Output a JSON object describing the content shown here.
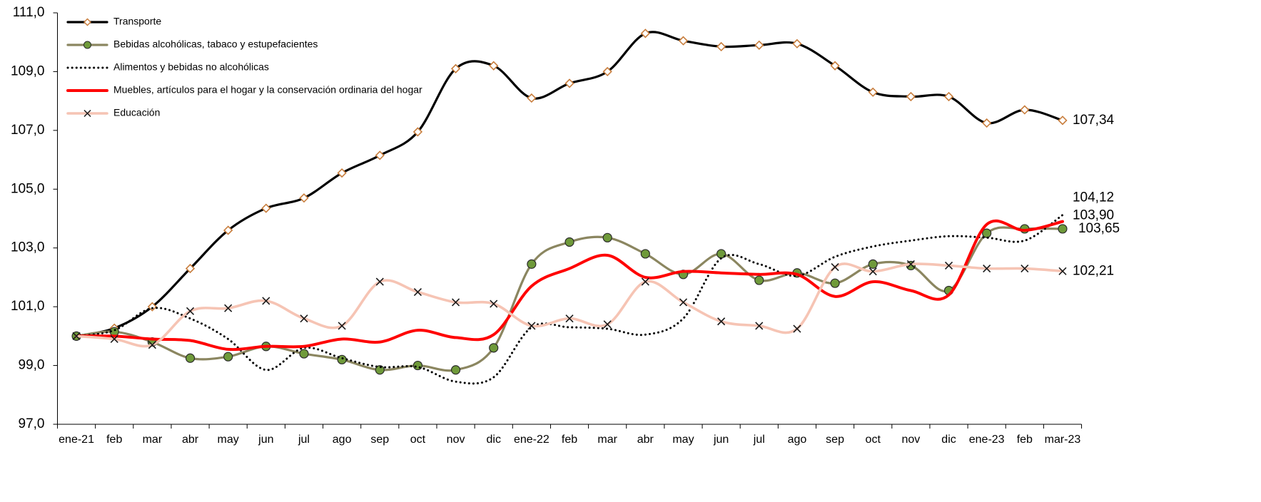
{
  "chart_data": {
    "type": "line",
    "categories": [
      "ene-21",
      "feb",
      "mar",
      "abr",
      "may",
      "jun",
      "jul",
      "ago",
      "sep",
      "oct",
      "nov",
      "dic",
      "ene-22",
      "feb",
      "mar",
      "abr",
      "may",
      "jun",
      "jul",
      "ago",
      "sep",
      "oct",
      "nov",
      "dic",
      "ene-23",
      "feb",
      "mar-23"
    ],
    "ylim": [
      97,
      111
    ],
    "yticks": [
      {
        "value": 97,
        "label": "97,0"
      },
      {
        "value": 99,
        "label": "99,0"
      },
      {
        "value": 101,
        "label": "101,0"
      },
      {
        "value": 103,
        "label": "103,0"
      },
      {
        "value": 105,
        "label": "105,0"
      },
      {
        "value": 107,
        "label": "107,0"
      },
      {
        "value": 109,
        "label": "109,0"
      },
      {
        "value": 111,
        "label": "111,0"
      }
    ],
    "legend": "top-left",
    "series": [
      {
        "name": "Transporte",
        "color": "#000000",
        "marker": "diamond",
        "marker_color": "#c87d3c",
        "dash": "solid",
        "label_color": "#000000",
        "values": [
          100.0,
          100.27,
          101.0,
          102.3,
          103.6,
          104.35,
          104.7,
          105.55,
          106.15,
          106.95,
          109.1,
          109.2,
          108.1,
          108.6,
          109.0,
          110.3,
          110.05,
          109.85,
          109.9,
          109.95,
          109.2,
          108.3,
          108.15,
          108.15,
          107.25,
          107.7,
          107.34
        ],
        "value_labels": [
          null,
          null,
          null,
          null,
          null,
          null,
          null,
          null,
          null,
          null,
          null,
          null,
          null,
          null,
          null,
          null,
          null,
          null,
          null,
          null,
          null,
          null,
          null,
          null,
          null,
          null,
          "107,34"
        ]
      },
      {
        "name": "Bebidas alcohólicas, tabaco y estupefacientes",
        "color": "#8b8660",
        "marker": "circle",
        "marker_color": "#6f9a3a",
        "dash": "solid",
        "label_color": "#7f8000",
        "values": [
          100.0,
          100.15,
          99.8,
          99.25,
          99.3,
          99.65,
          99.4,
          99.2,
          98.85,
          99.0,
          98.85,
          99.6,
          102.45,
          103.2,
          103.35,
          102.8,
          102.1,
          102.8,
          101.9,
          102.15,
          101.8,
          102.45,
          102.4,
          101.55,
          103.5,
          103.65,
          103.65
        ],
        "value_labels": [
          null,
          null,
          null,
          null,
          null,
          null,
          null,
          null,
          null,
          null,
          null,
          null,
          null,
          null,
          null,
          null,
          null,
          null,
          null,
          null,
          null,
          null,
          null,
          null,
          null,
          null,
          "103,65"
        ]
      },
      {
        "name": "Alimentos y bebidas no alcohólicas",
        "color": "#000000",
        "marker": "none",
        "marker_color": "#000000",
        "dash": "dotted",
        "label_color": "#000000",
        "values": [
          100.0,
          100.2,
          100.95,
          100.6,
          99.9,
          98.85,
          99.6,
          99.25,
          98.95,
          98.95,
          98.45,
          98.6,
          100.3,
          100.3,
          100.25,
          100.05,
          100.6,
          102.65,
          102.45,
          102.05,
          102.7,
          103.05,
          103.25,
          103.4,
          103.35,
          103.25,
          104.12
        ],
        "value_labels": [
          null,
          null,
          null,
          null,
          null,
          null,
          null,
          null,
          null,
          null,
          null,
          null,
          null,
          null,
          null,
          null,
          null,
          null,
          null,
          null,
          null,
          null,
          null,
          null,
          null,
          null,
          "104,12"
        ]
      },
      {
        "name": "Muebles, artículos para el hogar y la conservación ordinaria del hogar",
        "color": "#ff0000",
        "marker": "none",
        "marker_color": "#ff0000",
        "dash": "solid",
        "label_color": "#ff0000",
        "values": [
          100.0,
          100.0,
          99.9,
          99.85,
          99.55,
          99.65,
          99.65,
          99.9,
          99.8,
          100.2,
          99.95,
          100.05,
          101.7,
          102.3,
          102.75,
          102.0,
          102.2,
          102.15,
          102.1,
          102.1,
          101.35,
          101.85,
          101.55,
          101.4,
          103.8,
          103.6,
          103.9
        ],
        "value_labels": [
          null,
          null,
          null,
          null,
          null,
          null,
          null,
          null,
          null,
          null,
          null,
          null,
          null,
          null,
          null,
          null,
          null,
          null,
          null,
          null,
          null,
          null,
          null,
          null,
          null,
          null,
          "103,90"
        ]
      },
      {
        "name": "Educación",
        "color": "#f6c4b4",
        "marker": "x",
        "marker_color": "#1a1a1a",
        "dash": "solid",
        "label_color": "#000000",
        "values": [
          100.0,
          99.9,
          99.7,
          100.85,
          100.95,
          101.2,
          100.6,
          100.35,
          101.85,
          101.5,
          101.15,
          101.1,
          100.35,
          100.6,
          100.4,
          101.85,
          101.15,
          100.5,
          100.35,
          100.25,
          102.35,
          102.2,
          102.45,
          102.4,
          102.3,
          102.3,
          102.21
        ],
        "value_labels": [
          null,
          null,
          null,
          null,
          null,
          null,
          null,
          null,
          null,
          null,
          null,
          null,
          null,
          null,
          null,
          null,
          null,
          null,
          null,
          null,
          null,
          null,
          null,
          null,
          null,
          null,
          "102,21"
        ]
      }
    ]
  }
}
